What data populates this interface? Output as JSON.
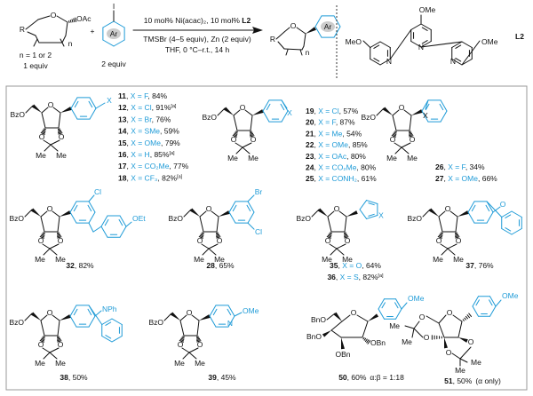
{
  "colors": {
    "accent": "#1f9bd7",
    "text": "#111111",
    "border": "#999999",
    "ar_fill": "#cccccc"
  },
  "scheme": {
    "sm_R": "R",
    "sm_O": "O",
    "sm_OAc": "OAc",
    "sm_n": "n",
    "sm_note1": "n = 1 or 2",
    "sm_note2": "1 equiv",
    "plus": "+",
    "iodide_I": "I",
    "iodide_Ar": "Ar",
    "iodide_equiv": "2 equiv",
    "cond1": "10 mol% Ni(acac)₂, 10 mol% ",
    "cond1_bold": "L2",
    "cond2": "TMSBr (4–5 equiv), Zn (2 equiv)",
    "cond3": "THF, 0 °C–r.t., 14 h",
    "prod_R": "R",
    "prod_O": "O",
    "prod_n": "n",
    "prod_Ar": "Ar",
    "ligand_MeO_left": "MeO",
    "ligand_OMe_top": "OMe",
    "ligand_OMe_right": "OMe",
    "ligand_N": "N",
    "ligand_label": "L2"
  },
  "atoms": {
    "O": "O",
    "BzO": "BzO",
    "Me": "Me",
    "X": "X",
    "BnO": "BnO",
    "OBn": "OBn",
    "OMe": "OMe"
  },
  "substituents": {
    "Cl": "Cl",
    "Br": "Br",
    "OEt": "OEt",
    "NPh": "NPh",
    "N": "N",
    "OMe": "OMe"
  },
  "compounds": {
    "para": [
      {
        "id": "11",
        "sub": "X = F",
        "yield": "84%"
      },
      {
        "id": "12",
        "sub": "X = Cl",
        "yield": "91%",
        "note": "[a]"
      },
      {
        "id": "13",
        "sub": "X = Br",
        "yield": "76%"
      },
      {
        "id": "14",
        "sub": "X = SMe",
        "yield": "59%"
      },
      {
        "id": "15",
        "sub": "X = OMe",
        "yield": "79%"
      },
      {
        "id": "16",
        "sub": "X = H",
        "yield": "85%",
        "note": "[a]"
      },
      {
        "id": "17",
        "sub": "X = CO₂Me",
        "yield": "77%"
      },
      {
        "id": "18",
        "sub": "X = CF₃",
        "yield": "82%",
        "note": "[a]"
      }
    ],
    "meta": [
      {
        "id": "19",
        "sub": "X = Cl",
        "yield": "57%"
      },
      {
        "id": "20",
        "sub": "X = F",
        "yield": "87%"
      },
      {
        "id": "21",
        "sub": "X = Me",
        "yield": "54%"
      },
      {
        "id": "22",
        "sub": "X = OMe",
        "yield": "85%"
      },
      {
        "id": "23",
        "sub": "X = OAc",
        "yield": "80%"
      },
      {
        "id": "24",
        "sub": "X = CO₂Me",
        "yield": "80%"
      },
      {
        "id": "25",
        "sub": "X = CONH₂",
        "yield": "61%"
      }
    ],
    "ortho": [
      {
        "id": "26",
        "sub": "X = F",
        "yield": "34%"
      },
      {
        "id": "27",
        "sub": "X = OMe",
        "yield": "66%"
      }
    ],
    "c32": {
      "id": "32",
      "yield": "82%"
    },
    "c28": {
      "id": "28",
      "yield": "65%"
    },
    "hetero5": [
      {
        "id": "35",
        "sub": "X = O",
        "yield": "64%"
      },
      {
        "id": "36",
        "sub": "X = S",
        "yield": "82%",
        "note": "[a]"
      }
    ],
    "c37": {
      "id": "37",
      "yield": "76%"
    },
    "c38": {
      "id": "38",
      "yield": "50%"
    },
    "c39": {
      "id": "39",
      "yield": "45%"
    },
    "c50": {
      "id": "50",
      "yield": "60%",
      "extra": "α:β = 1:18"
    },
    "c51": {
      "id": "51",
      "yield": "50%",
      "extra": "(α only)"
    }
  }
}
